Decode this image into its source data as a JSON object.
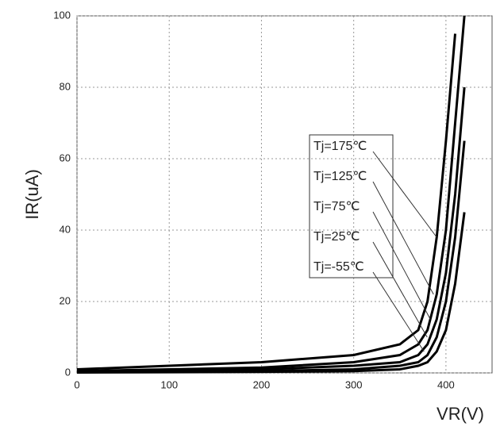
{
  "chart_data": {
    "type": "line",
    "x_label": "IR(uA)",
    "xlabel": "VR(V)",
    "y_label": "IR(uA)",
    "x": [
      0,
      100,
      200,
      300,
      350,
      370,
      380,
      390,
      400,
      410,
      420
    ],
    "series": [
      {
        "name": "Tj=175℃",
        "color": "#000000",
        "values": [
          1,
          2,
          3,
          5,
          8,
          12,
          20,
          38,
          65,
          95,
          null
        ]
      },
      {
        "name": "Tj=125℃",
        "color": "#000000",
        "values": [
          0.5,
          1,
          1.5,
          3,
          5,
          8,
          12,
          22,
          40,
          70,
          100
        ]
      },
      {
        "name": "Tj=75℃",
        "color": "#000000",
        "values": [
          0.3,
          0.5,
          1,
          2,
          3,
          5,
          8,
          15,
          28,
          50,
          80
        ]
      },
      {
        "name": "Tj=25℃",
        "color": "#000000",
        "values": [
          0.2,
          0.3,
          0.5,
          1,
          2,
          3,
          5,
          10,
          20,
          38,
          65
        ]
      },
      {
        "name": "Tj=-55℃",
        "color": "#000000",
        "values": [
          0.1,
          0.2,
          0.3,
          0.5,
          1,
          2,
          3,
          6,
          12,
          25,
          45
        ]
      }
    ],
    "xlim": [
      0,
      450
    ],
    "xticks": [
      0,
      100,
      200,
      300,
      400
    ],
    "ylim": [
      0,
      100
    ],
    "yticks": [
      0,
      20,
      40,
      60,
      80,
      100
    ],
    "grid": true
  }
}
